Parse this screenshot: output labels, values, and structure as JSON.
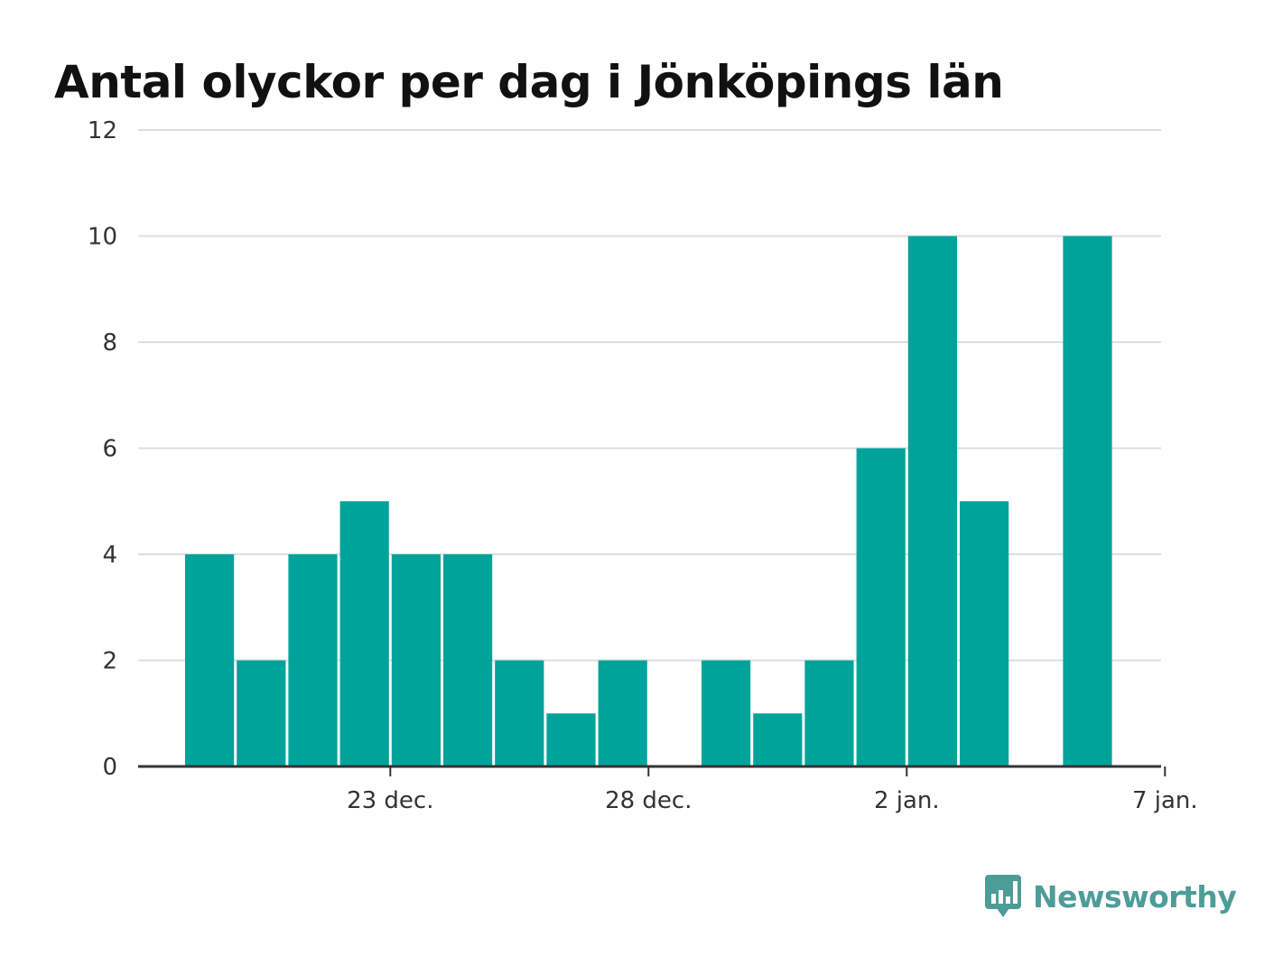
{
  "colors": {
    "bar": "#00a39a",
    "grid": "#dddddd",
    "axis": "#333333",
    "brand": "#4e9c98"
  },
  "brand": {
    "name": "Newsworthy",
    "icon": "bar-chart-speech-bubble-icon"
  },
  "chart_data": {
    "type": "bar",
    "title": "Antal olyckor per dag i Jönköpings län",
    "xlabel": "",
    "ylabel": "",
    "grid": true,
    "ylim": [
      0,
      12
    ],
    "y_ticks": [
      0,
      2,
      4,
      6,
      8,
      10,
      12
    ],
    "categories": [
      "2021-12-21",
      "2021-12-22",
      "2021-12-23",
      "2021-12-24",
      "2021-12-25",
      "2021-12-26",
      "2021-12-27",
      "2021-12-28",
      "2021-12-29",
      "2021-12-30",
      "2021-12-31",
      "2022-01-01",
      "2022-01-02",
      "2022-01-03",
      "2022-01-04",
      "2022-01-05",
      "2022-01-06",
      "2022-01-07",
      "2022-01-08"
    ],
    "values": [
      4,
      2,
      4,
      5,
      4,
      4,
      2,
      1,
      2,
      0,
      2,
      1,
      2,
      6,
      10,
      5,
      0,
      10,
      0
    ],
    "x_ticks": [
      {
        "label": "23 dec.",
        "date": "2021-12-25"
      },
      {
        "label": "28 dec.",
        "date": "2021-12-30"
      },
      {
        "label": "2 jan.",
        "date": "2022-01-04"
      },
      {
        "label": "7 jan.",
        "date": "2022-01-09"
      }
    ]
  }
}
